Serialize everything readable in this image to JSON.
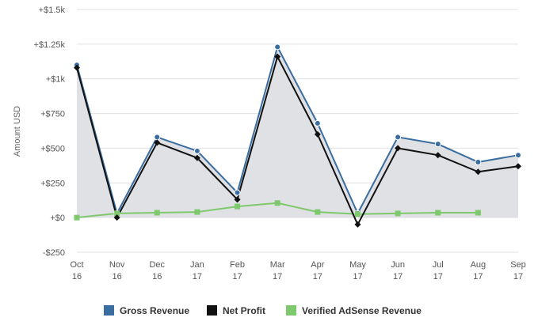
{
  "chart_data": {
    "type": "line",
    "title": "",
    "xlabel": "",
    "ylabel": "Amount USD",
    "ylim": [
      -250,
      1500
    ],
    "yticks": [
      {
        "value": -250,
        "label": "-$250"
      },
      {
        "value": 0,
        "label": "+$0"
      },
      {
        "value": 250,
        "label": "+$250"
      },
      {
        "value": 500,
        "label": "+$500"
      },
      {
        "value": 750,
        "label": "+$750"
      },
      {
        "value": 1000,
        "label": "+$1k"
      },
      {
        "value": 1250,
        "label": "+$1.25k"
      },
      {
        "value": 1500,
        "label": "+$1.5k"
      }
    ],
    "categories": [
      {
        "month": "Oct",
        "year": "16"
      },
      {
        "month": "Nov",
        "year": "16"
      },
      {
        "month": "Dec",
        "year": "16"
      },
      {
        "month": "Jan",
        "year": "17"
      },
      {
        "month": "Feb",
        "year": "17"
      },
      {
        "month": "Mar",
        "year": "17"
      },
      {
        "month": "Apr",
        "year": "17"
      },
      {
        "month": "May",
        "year": "17"
      },
      {
        "month": "Jun",
        "year": "17"
      },
      {
        "month": "Jul",
        "year": "17"
      },
      {
        "month": "Aug",
        "year": "17"
      },
      {
        "month": "Sep",
        "year": "17"
      }
    ],
    "series": [
      {
        "name": "Gross Revenue",
        "color": "#3a6da0",
        "marker": "circle",
        "area": true,
        "values": [
          1100,
          30,
          580,
          480,
          180,
          1230,
          680,
          30,
          580,
          530,
          400,
          450
        ]
      },
      {
        "name": "Net Profit",
        "color": "#111111",
        "marker": "diamond",
        "area": false,
        "values": [
          1080,
          0,
          540,
          430,
          130,
          1160,
          600,
          -50,
          500,
          450,
          330,
          370
        ]
      },
      {
        "name": "Verified AdSense Revenue",
        "color": "#7ec86d",
        "marker": "square",
        "area": false,
        "values": [
          0,
          30,
          35,
          40,
          80,
          105,
          40,
          25,
          30,
          35,
          35,
          null
        ]
      }
    ],
    "grid": true,
    "legend_position": "bottom"
  }
}
